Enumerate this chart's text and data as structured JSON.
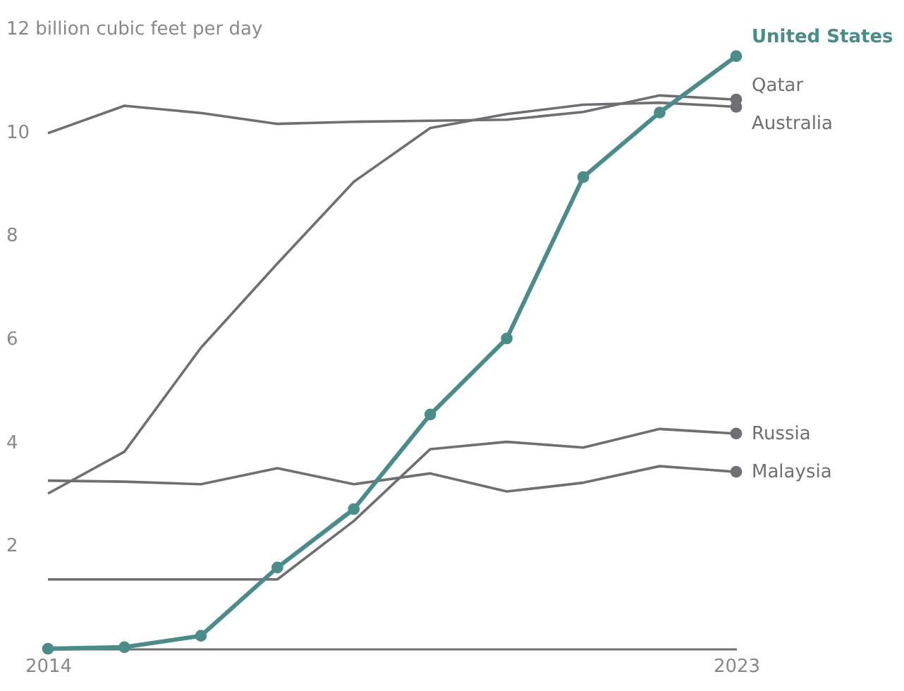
{
  "chart_data": {
    "type": "line",
    "x": [
      2014,
      2015,
      2016,
      2017,
      2018,
      2019,
      2020,
      2021,
      2022,
      2023
    ],
    "xlim": [
      2014,
      2023
    ],
    "xticks": [
      2014,
      2023
    ],
    "ylim": [
      0,
      12
    ],
    "yticks": [
      2,
      4,
      6,
      8,
      10,
      {
        "value": 12,
        "label": "12 billion cubic feet per day"
      }
    ],
    "grid": false,
    "legend": "right",
    "line_style": "solid",
    "series": [
      {
        "name": "Qatar",
        "color": "#6e6e73",
        "marker": "none",
        "values": [
          9.97,
          10.5,
          10.36,
          10.15,
          10.19,
          10.21,
          10.23,
          10.38,
          10.7,
          10.62
        ]
      },
      {
        "name": "Australia",
        "color": "#6e6e73",
        "marker": "none",
        "values": [
          3.0,
          3.81,
          5.82,
          7.45,
          9.03,
          10.07,
          10.34,
          10.52,
          10.56,
          10.48
        ]
      },
      {
        "name": "Russia",
        "color": "#6e6e73",
        "marker": "none",
        "values": [
          1.34,
          1.34,
          1.34,
          1.34,
          2.47,
          3.86,
          4.0,
          3.89,
          4.25,
          4.16
        ]
      },
      {
        "name": "Malaysia",
        "color": "#6e6e73",
        "marker": "none",
        "values": [
          3.25,
          3.23,
          3.18,
          3.49,
          3.18,
          3.39,
          3.04,
          3.21,
          3.53,
          3.42
        ]
      },
      {
        "name": "United States",
        "color": "#4a8c8a",
        "marker": "circle",
        "values": [
          0,
          0.03,
          0.25,
          1.57,
          2.7,
          4.53,
          6.0,
          9.12,
          10.37,
          11.46
        ]
      }
    ]
  }
}
